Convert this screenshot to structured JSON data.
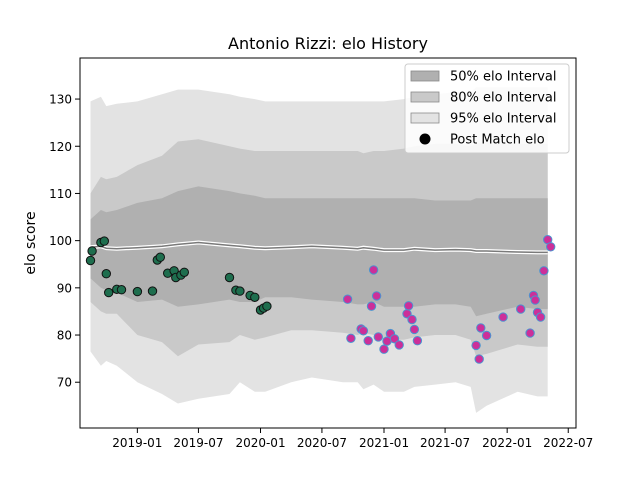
{
  "chart_data": {
    "type": "scatter",
    "title": "Antonio Rizzi: elo History",
    "xlabel": "",
    "ylabel": "elo score",
    "x_range": [
      "2018-07-15",
      "2022-07-24"
    ],
    "y_range": [
      60.3,
      138.7
    ],
    "x_ticks": [
      "2019-01-01",
      "2019-07-01",
      "2020-01-01",
      "2020-07-01",
      "2021-01-01",
      "2021-07-01",
      "2022-01-01",
      "2022-07-01"
    ],
    "x_tick_labels": [
      "2019-01",
      "2019-07",
      "2020-01",
      "2020-07",
      "2021-01",
      "2021-07",
      "2022-01",
      "2022-07"
    ],
    "y_ticks": [
      70,
      80,
      90,
      100,
      110,
      120,
      130
    ],
    "y_tick_labels": [
      "70",
      "80",
      "90",
      "100",
      "110",
      "120",
      "130"
    ],
    "grid": false,
    "legend_position": "top-right",
    "legend": [
      {
        "label": "50% elo Interval",
        "kind": "band",
        "color": "#b0b0b0"
      },
      {
        "label": "80% elo Interval",
        "kind": "band",
        "color": "#c9c9c9"
      },
      {
        "label": "95% elo Interval",
        "kind": "band",
        "color": "#e3e3e3"
      },
      {
        "label": "Post Match elo",
        "kind": "marker",
        "color": "#000000"
      }
    ],
    "bands": {
      "dates": [
        "2018-08-15",
        "2018-09-15",
        "2018-10-01",
        "2018-11-01",
        "2019-01-01",
        "2019-03-15",
        "2019-05-01",
        "2019-07-01",
        "2019-10-01",
        "2019-11-01",
        "2019-12-15",
        "2020-01-15",
        "2020-04-01",
        "2020-06-01",
        "2020-09-01",
        "2020-10-15",
        "2020-11-01",
        "2020-12-01",
        "2021-01-01",
        "2021-03-01",
        "2021-04-01",
        "2021-06-01",
        "2021-08-01",
        "2021-09-15",
        "2021-10-01",
        "2021-11-01",
        "2022-02-01",
        "2022-04-01",
        "2022-05-01"
      ],
      "lower95": [
        76.5,
        73.5,
        74.5,
        73.5,
        70.0,
        67.5,
        65.5,
        66.5,
        67.5,
        70.0,
        68.0,
        68.0,
        70.0,
        71.0,
        70.0,
        70.0,
        68.5,
        69.5,
        68.0,
        68.0,
        69.0,
        69.5,
        70.0,
        69.0,
        63.5,
        65.0,
        68.0,
        67.0,
        67.0
      ],
      "lower80": [
        87.0,
        85.0,
        84.5,
        84.5,
        80.0,
        78.5,
        75.5,
        78.0,
        78.5,
        80.0,
        79.0,
        79.5,
        81.0,
        81.0,
        80.5,
        80.0,
        80.5,
        80.0,
        79.0,
        79.0,
        79.5,
        80.0,
        80.0,
        79.0,
        75.5,
        76.0,
        78.0,
        77.5,
        77.5
      ],
      "lower50": [
        92.0,
        90.0,
        89.5,
        89.0,
        87.0,
        87.5,
        86.0,
        86.5,
        87.5,
        87.0,
        87.0,
        88.0,
        88.0,
        87.5,
        87.0,
        86.5,
        86.5,
        87.0,
        86.0,
        86.0,
        86.0,
        86.5,
        86.5,
        86.0,
        84.0,
        84.5,
        86.0,
        85.5,
        85.5
      ],
      "median": [
        98.6,
        98.8,
        98.4,
        98.3,
        98.5,
        98.8,
        99.2,
        99.6,
        99.0,
        98.8,
        98.5,
        98.4,
        98.6,
        98.8,
        98.5,
        98.3,
        98.5,
        98.3,
        98.0,
        98.0,
        98.3,
        98.0,
        98.1,
        98.0,
        97.8,
        97.8,
        97.6,
        97.5,
        97.5
      ],
      "upper50": [
        104.5,
        106.5,
        106.0,
        106.5,
        108.0,
        109.0,
        110.5,
        111.5,
        110.5,
        110.0,
        109.5,
        109.0,
        109.0,
        109.0,
        109.0,
        109.0,
        109.0,
        109.0,
        109.0,
        109.0,
        109.0,
        108.5,
        108.5,
        108.5,
        109.0,
        109.0,
        109.0,
        109.0,
        109.0
      ],
      "upper80": [
        110.0,
        113.5,
        113.0,
        113.5,
        116.0,
        118.0,
        121.0,
        121.5,
        120.0,
        119.5,
        119.0,
        119.0,
        119.0,
        119.0,
        119.0,
        119.0,
        118.5,
        119.0,
        119.0,
        119.5,
        120.0,
        120.5,
        120.5,
        120.0,
        120.5,
        121.0,
        120.5,
        120.5,
        120.5
      ],
      "upper95": [
        129.5,
        130.5,
        128.5,
        129.0,
        129.5,
        131.0,
        132.0,
        132.0,
        131.0,
        130.5,
        130.0,
        129.5,
        129.5,
        129.5,
        129.5,
        129.5,
        129.5,
        129.5,
        129.5,
        130.0,
        130.5,
        131.0,
        131.5,
        131.5,
        132.5,
        132.5,
        132.5,
        132.5,
        132.5
      ]
    },
    "series": [
      {
        "name": "Post Match elo",
        "fill": "#1e6e4e",
        "edge": "#111111",
        "points": [
          {
            "x": "2018-08-15",
            "y": 95.8
          },
          {
            "x": "2018-08-20",
            "y": 97.8
          },
          {
            "x": "2018-09-15",
            "y": 99.6
          },
          {
            "x": "2018-09-25",
            "y": 99.9
          },
          {
            "x": "2018-10-01",
            "y": 93.0
          },
          {
            "x": "2018-10-08",
            "y": 89.0
          },
          {
            "x": "2018-11-01",
            "y": 89.7
          },
          {
            "x": "2018-11-15",
            "y": 89.6
          },
          {
            "x": "2019-01-01",
            "y": 89.2
          },
          {
            "x": "2019-02-15",
            "y": 89.3
          },
          {
            "x": "2019-03-01",
            "y": 95.9
          },
          {
            "x": "2019-03-10",
            "y": 96.5
          },
          {
            "x": "2019-04-01",
            "y": 93.1
          },
          {
            "x": "2019-04-20",
            "y": 93.6
          },
          {
            "x": "2019-04-25",
            "y": 92.2
          },
          {
            "x": "2019-05-10",
            "y": 92.7
          },
          {
            "x": "2019-05-20",
            "y": 93.3
          },
          {
            "x": "2019-10-01",
            "y": 92.2
          },
          {
            "x": "2019-10-20",
            "y": 89.5
          },
          {
            "x": "2019-11-01",
            "y": 89.3
          },
          {
            "x": "2019-12-01",
            "y": 88.4
          },
          {
            "x": "2019-12-15",
            "y": 88.0
          },
          {
            "x": "2020-01-01",
            "y": 85.3
          },
          {
            "x": "2020-01-10",
            "y": 85.7
          },
          {
            "x": "2020-01-20",
            "y": 86.1
          }
        ]
      },
      {
        "name": "Post Match elo",
        "fill": "#cc2f99",
        "edge": "#4b93d0",
        "points": [
          {
            "x": "2020-09-15",
            "y": 87.6
          },
          {
            "x": "2020-09-25",
            "y": 79.3
          },
          {
            "x": "2020-10-25",
            "y": 81.3
          },
          {
            "x": "2020-11-01",
            "y": 80.9
          },
          {
            "x": "2020-11-15",
            "y": 78.8
          },
          {
            "x": "2020-11-25",
            "y": 86.1
          },
          {
            "x": "2020-12-01",
            "y": 93.8
          },
          {
            "x": "2020-12-10",
            "y": 88.3
          },
          {
            "x": "2020-12-15",
            "y": 79.6
          },
          {
            "x": "2021-01-01",
            "y": 77.0
          },
          {
            "x": "2021-01-10",
            "y": 78.7
          },
          {
            "x": "2021-01-20",
            "y": 80.3
          },
          {
            "x": "2021-02-01",
            "y": 79.2
          },
          {
            "x": "2021-02-15",
            "y": 77.9
          },
          {
            "x": "2021-03-10",
            "y": 84.5
          },
          {
            "x": "2021-03-15",
            "y": 86.2
          },
          {
            "x": "2021-03-25",
            "y": 83.3
          },
          {
            "x": "2021-04-01",
            "y": 81.2
          },
          {
            "x": "2021-04-10",
            "y": 78.8
          },
          {
            "x": "2021-10-01",
            "y": 77.8
          },
          {
            "x": "2021-10-10",
            "y": 74.9
          },
          {
            "x": "2021-10-15",
            "y": 81.5
          },
          {
            "x": "2021-11-01",
            "y": 79.9
          },
          {
            "x": "2021-12-20",
            "y": 83.8
          },
          {
            "x": "2022-02-10",
            "y": 85.5
          },
          {
            "x": "2022-03-10",
            "y": 80.4
          },
          {
            "x": "2022-03-20",
            "y": 88.4
          },
          {
            "x": "2022-03-25",
            "y": 87.4
          },
          {
            "x": "2022-04-01",
            "y": 84.8
          },
          {
            "x": "2022-04-10",
            "y": 83.8
          },
          {
            "x": "2022-04-20",
            "y": 93.6
          },
          {
            "x": "2022-05-01",
            "y": 100.2
          },
          {
            "x": "2022-05-10",
            "y": 98.7
          }
        ]
      }
    ]
  }
}
